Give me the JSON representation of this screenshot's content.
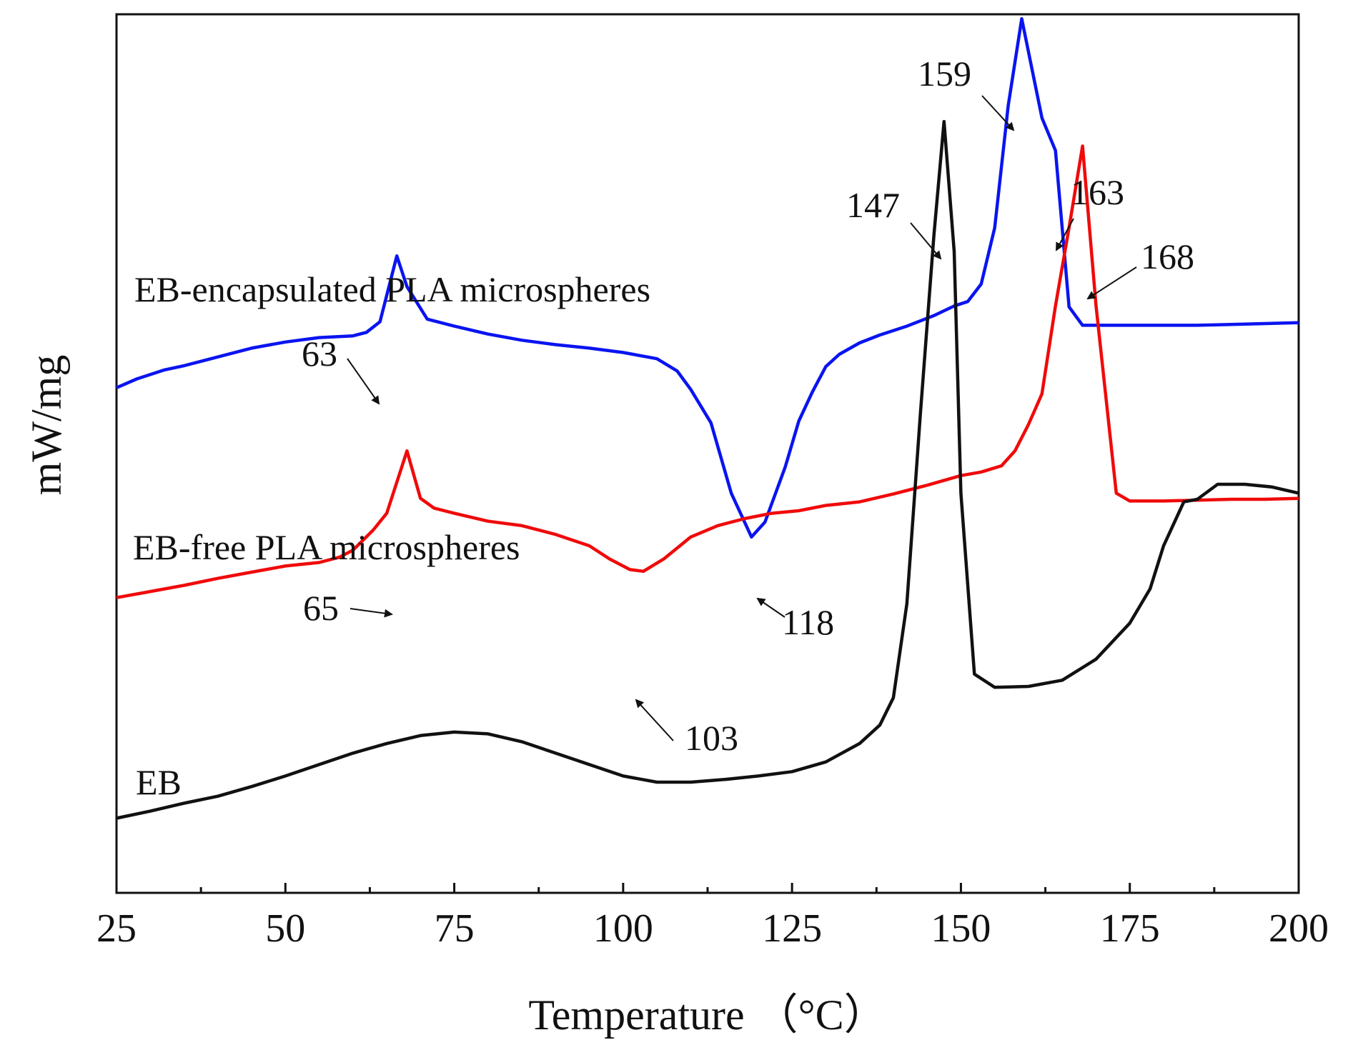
{
  "chart_data": {
    "type": "line",
    "title": "",
    "xlabel": "Temperature （°C）",
    "ylabel": "mW/mg",
    "xlim": [
      25,
      200
    ],
    "ylim": [
      0,
      100
    ],
    "x_ticks": [
      25,
      50,
      75,
      100,
      125,
      150,
      175,
      200
    ],
    "x_ticks_display": [
      "25",
      "50",
      "75",
      "100",
      "125",
      "150",
      "175",
      "200"
    ],
    "y_tick_labels_shown": false,
    "grid": false,
    "legend": "none (inline series labels)",
    "series": [
      {
        "name": "EB-encapsulated PLA microspheres",
        "color": "#0a14f0",
        "points": [
          [
            25,
            57.5
          ],
          [
            28,
            58.5
          ],
          [
            32,
            59.5
          ],
          [
            35,
            60
          ],
          [
            40,
            61
          ],
          [
            45,
            62
          ],
          [
            50,
            62.7
          ],
          [
            55,
            63.2
          ],
          [
            60,
            63.4
          ],
          [
            62,
            63.8
          ],
          [
            64,
            65
          ],
          [
            66.5,
            72.5
          ],
          [
            68,
            69
          ],
          [
            71,
            65.3
          ],
          [
            75,
            64.5
          ],
          [
            80,
            63.6
          ],
          [
            85,
            62.9
          ],
          [
            90,
            62.4
          ],
          [
            95,
            62
          ],
          [
            100,
            61.5
          ],
          [
            105,
            60.8
          ],
          [
            108,
            59.4
          ],
          [
            110,
            57.3
          ],
          [
            113,
            53.5
          ],
          [
            116,
            45.5
          ],
          [
            119,
            40.5
          ],
          [
            121,
            42.2
          ],
          [
            124,
            48.5
          ],
          [
            126,
            53.7
          ],
          [
            128,
            57
          ],
          [
            130,
            59.9
          ],
          [
            132,
            61.3
          ],
          [
            135,
            62.6
          ],
          [
            138,
            63.5
          ],
          [
            142,
            64.5
          ],
          [
            146,
            65.7
          ],
          [
            149,
            66.8
          ],
          [
            151,
            67.3
          ],
          [
            153,
            69.3
          ],
          [
            155,
            75.7
          ],
          [
            157,
            89.6
          ],
          [
            159,
            99.5
          ],
          [
            162,
            88.2
          ],
          [
            164,
            84.5
          ],
          [
            166,
            66.7
          ],
          [
            168,
            64.6
          ],
          [
            170,
            64.6
          ],
          [
            175,
            64.6
          ],
          [
            180,
            64.6
          ],
          [
            185,
            64.6
          ],
          [
            190,
            64.7
          ],
          [
            195,
            64.8
          ],
          [
            200,
            64.9
          ]
        ]
      },
      {
        "name": "EB-free PLA microspheres",
        "color": "#f00a0a",
        "points": [
          [
            25,
            33.6
          ],
          [
            30,
            34.3
          ],
          [
            35,
            35
          ],
          [
            40,
            35.8
          ],
          [
            45,
            36.5
          ],
          [
            50,
            37.2
          ],
          [
            55,
            37.6
          ],
          [
            58,
            38.2
          ],
          [
            60,
            39
          ],
          [
            63,
            41.3
          ],
          [
            65,
            43.2
          ],
          [
            68,
            50.3
          ],
          [
            70,
            44.9
          ],
          [
            72,
            43.8
          ],
          [
            75,
            43.2
          ],
          [
            80,
            42.3
          ],
          [
            85,
            41.8
          ],
          [
            90,
            40.8
          ],
          [
            95,
            39.5
          ],
          [
            98,
            38
          ],
          [
            101,
            36.8
          ],
          [
            103,
            36.6
          ],
          [
            106,
            38
          ],
          [
            110,
            40.5
          ],
          [
            114,
            41.8
          ],
          [
            118,
            42.6
          ],
          [
            122,
            43.2
          ],
          [
            126,
            43.5
          ],
          [
            130,
            44.1
          ],
          [
            135,
            44.5
          ],
          [
            140,
            45.4
          ],
          [
            145,
            46.4
          ],
          [
            150,
            47.5
          ],
          [
            153,
            47.9
          ],
          [
            156,
            48.6
          ],
          [
            158,
            50.3
          ],
          [
            160,
            53.3
          ],
          [
            162,
            56.8
          ],
          [
            164,
            66.8
          ],
          [
            166,
            75.7
          ],
          [
            168,
            85
          ],
          [
            170,
            66.8
          ],
          [
            173,
            45.5
          ],
          [
            175,
            44.6
          ],
          [
            180,
            44.6
          ],
          [
            185,
            44.7
          ],
          [
            190,
            44.8
          ],
          [
            195,
            44.8
          ],
          [
            200,
            44.9
          ]
        ]
      },
      {
        "name": "EB",
        "color": "#111111",
        "points": [
          [
            25,
            8.5
          ],
          [
            30,
            9.3
          ],
          [
            35,
            10.2
          ],
          [
            40,
            11
          ],
          [
            45,
            12.1
          ],
          [
            50,
            13.3
          ],
          [
            55,
            14.6
          ],
          [
            60,
            15.9
          ],
          [
            65,
            17
          ],
          [
            70,
            17.9
          ],
          [
            75,
            18.3
          ],
          [
            80,
            18.1
          ],
          [
            85,
            17.2
          ],
          [
            90,
            15.9
          ],
          [
            95,
            14.6
          ],
          [
            100,
            13.3
          ],
          [
            105,
            12.6
          ],
          [
            110,
            12.6
          ],
          [
            115,
            12.9
          ],
          [
            120,
            13.3
          ],
          [
            125,
            13.8
          ],
          [
            130,
            14.9
          ],
          [
            135,
            17
          ],
          [
            138,
            19.1
          ],
          [
            140,
            22.2
          ],
          [
            142,
            32.9
          ],
          [
            144,
            54.5
          ],
          [
            146,
            74.8
          ],
          [
            147.5,
            87.8
          ],
          [
            149,
            73
          ],
          [
            150,
            45.5
          ],
          [
            152,
            24.9
          ],
          [
            155,
            23.4
          ],
          [
            160,
            23.5
          ],
          [
            165,
            24.2
          ],
          [
            170,
            26.6
          ],
          [
            175,
            30.7
          ],
          [
            178,
            34.6
          ],
          [
            180,
            39.5
          ],
          [
            183,
            44.5
          ],
          [
            185,
            44.8
          ],
          [
            188,
            46.5
          ],
          [
            192,
            46.5
          ],
          [
            196,
            46.2
          ],
          [
            200,
            45.5
          ]
        ]
      }
    ],
    "series_labels": [
      {
        "text": "EB-encapsulated PLA microspheres",
        "series": 0
      },
      {
        "text": "EB-free PLA microspheres",
        "series": 1
      },
      {
        "text": "EB",
        "series": 2
      }
    ],
    "annotations": [
      {
        "text": "63",
        "series": 0,
        "x": 63
      },
      {
        "text": "65",
        "series": 1,
        "x": 65
      },
      {
        "text": "118",
        "series": 0,
        "x": 118
      },
      {
        "text": "103",
        "series": 1,
        "x": 103
      },
      {
        "text": "147",
        "series": 2,
        "x": 147
      },
      {
        "text": "159",
        "series": 0,
        "x": 159
      },
      {
        "text": "163",
        "series": 0,
        "x": 163
      },
      {
        "text": "168",
        "series": 1,
        "x": 168
      }
    ]
  }
}
